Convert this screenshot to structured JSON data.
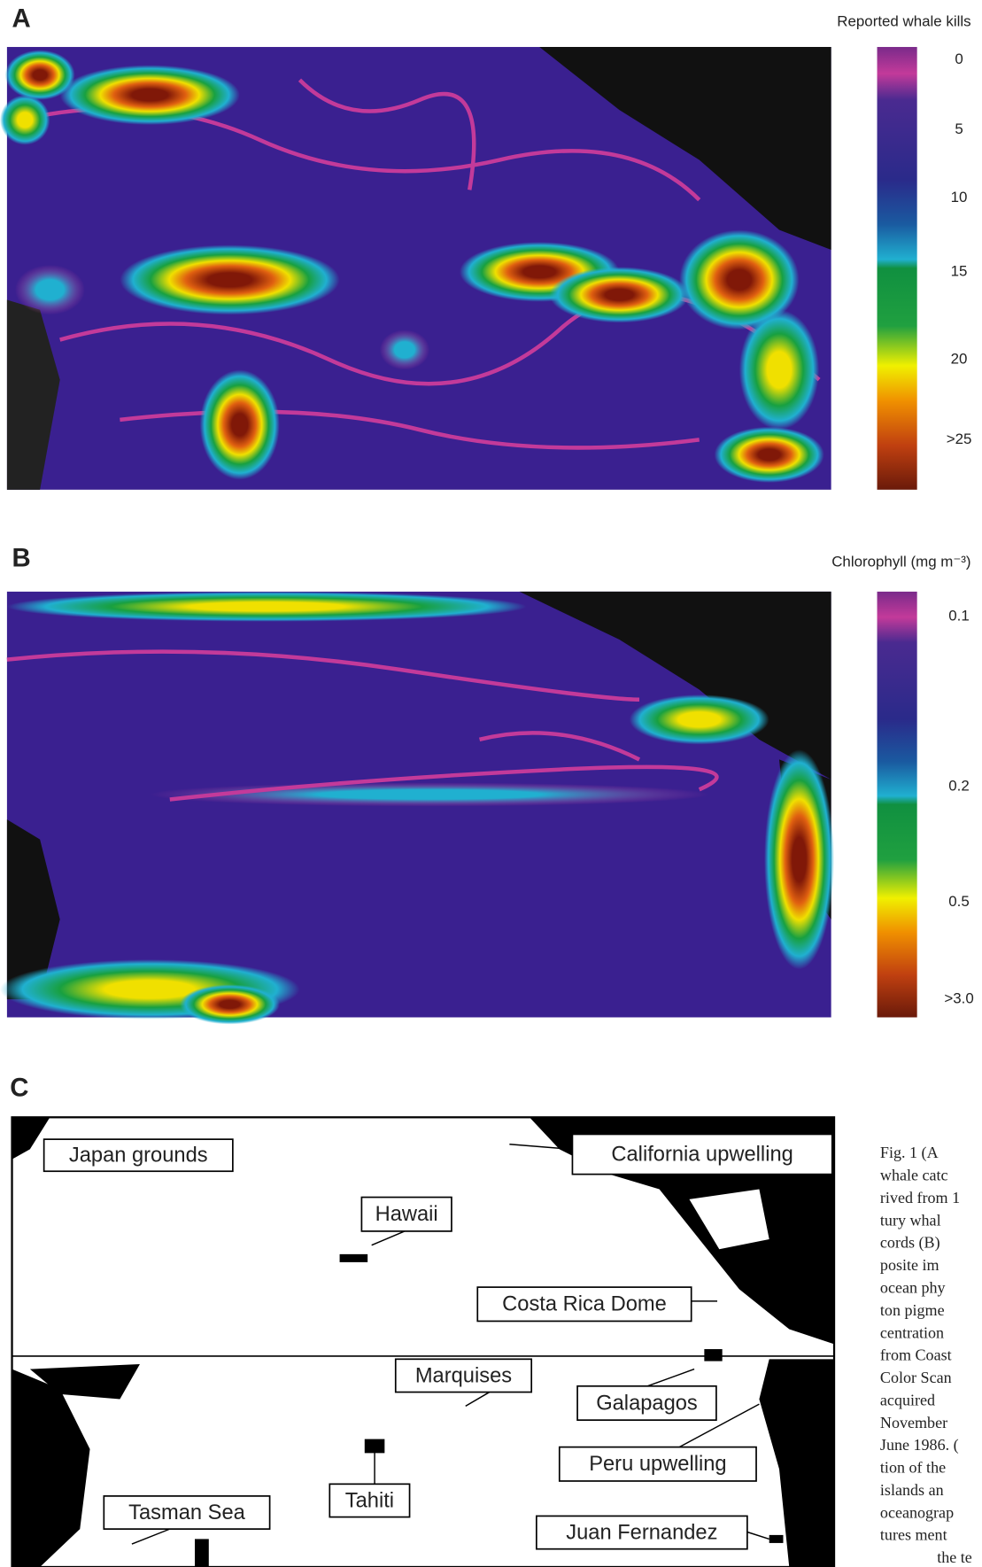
{
  "panels": [
    {
      "letter": "A",
      "title": "Reported whale kills",
      "scale_labels": [
        "0",
        "5",
        "10",
        "15",
        "20",
        ">25"
      ]
    },
    {
      "letter": "B",
      "title": "Chlorophyll (mg m⁻³)",
      "scale_labels": [
        "0.1",
        "0.2",
        "0.5",
        ">3.0"
      ]
    },
    {
      "letter": "C",
      "places": [
        "Japan grounds",
        "California upwelling",
        "Hawaii",
        "Costa Rica Dome",
        "Marquises",
        "Galapagos",
        "Peru upwelling",
        "Tasman Sea",
        "Tahiti",
        "Juan Fernandez"
      ]
    }
  ],
  "caption": [
    "Fig. 1 (A",
    "whale catc",
    "rived from 1",
    "tury whal",
    "cords (B)",
    "posite im",
    "ocean phy",
    "ton pigme",
    "centration",
    "from Coast",
    "Color Scan",
    "acquired",
    "November",
    "June 1986. (",
    "tion of the",
    "islands an",
    "oceanograp",
    "tures ment",
    "the te"
  ]
}
